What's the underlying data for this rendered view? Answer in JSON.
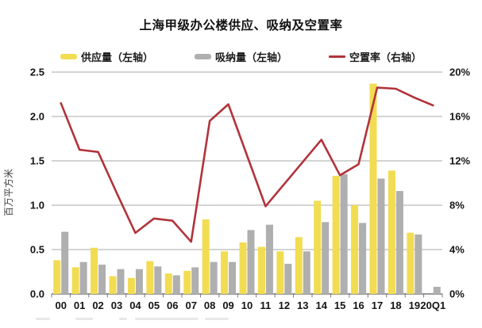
{
  "title": "上海甲级办公楼供应、吸纳及空置率",
  "legend": {
    "items": [
      {
        "label": "供应量（左轴）",
        "type": "bar",
        "color": "#F2DC51"
      },
      {
        "label": "吸纳量（左轴）",
        "type": "bar",
        "color": "#AFAFAF"
      },
      {
        "label": "空置率（右轴）",
        "type": "line",
        "color": "#B2333B"
      }
    ]
  },
  "left_axis": {
    "title": "百万平方米",
    "ticks": [
      "2.5",
      "2.0",
      "1.5",
      "1.0",
      "0.5",
      "0.0"
    ],
    "min": 0,
    "max": 2.5
  },
  "right_axis": {
    "ticks": [
      "20%",
      "16%",
      "12%",
      "8%",
      "4%",
      "0%"
    ],
    "min": 0,
    "max": 20
  },
  "colors": {
    "supply": "#F2DC51",
    "absorption": "#AFAFAF",
    "vacancy": "#B2333B",
    "gridline": "#A8A8A8",
    "axis": "#7a7a7a"
  },
  "chart_data": {
    "type": "bar+line",
    "title": "上海甲级办公楼供应、吸纳及空置率",
    "ylabel_left": "百万平方米",
    "ylabel_right": "%",
    "ylim_left": [
      0,
      2.5
    ],
    "ylim_right": [
      0,
      20
    ],
    "grid": true,
    "legend_position": "top",
    "categories": [
      "00",
      "01",
      "02",
      "03",
      "04",
      "05",
      "06",
      "07",
      "08",
      "09",
      "10",
      "11",
      "12",
      "13",
      "14",
      "15",
      "16",
      "17",
      "18",
      "19",
      "20Q1"
    ],
    "series": [
      {
        "name": "供应量（左轴）",
        "type": "bar",
        "axis": "left",
        "values": [
          0.38,
          0.3,
          0.52,
          0.2,
          0.18,
          0.37,
          0.23,
          0.26,
          0.84,
          0.48,
          0.58,
          0.53,
          0.48,
          0.64,
          1.05,
          1.33,
          1.0,
          2.37,
          1.39,
          0.69,
          null
        ]
      },
      {
        "name": "吸纳量（左轴）",
        "type": "bar",
        "axis": "left",
        "values": [
          0.7,
          0.36,
          0.33,
          0.28,
          0.28,
          0.31,
          0.21,
          0.3,
          0.36,
          0.36,
          0.72,
          0.78,
          0.34,
          0.48,
          0.81,
          1.35,
          0.8,
          1.3,
          1.16,
          0.67,
          0.08
        ]
      },
      {
        "name": "空置率（右轴）",
        "type": "line",
        "axis": "right",
        "values": [
          17.2,
          13.0,
          12.8,
          9.1,
          5.5,
          6.8,
          6.6,
          4.7,
          15.6,
          17.1,
          12.5,
          7.9,
          9.9,
          11.9,
          13.9,
          10.7,
          11.7,
          18.6,
          18.5,
          17.7,
          17.0
        ]
      }
    ]
  }
}
